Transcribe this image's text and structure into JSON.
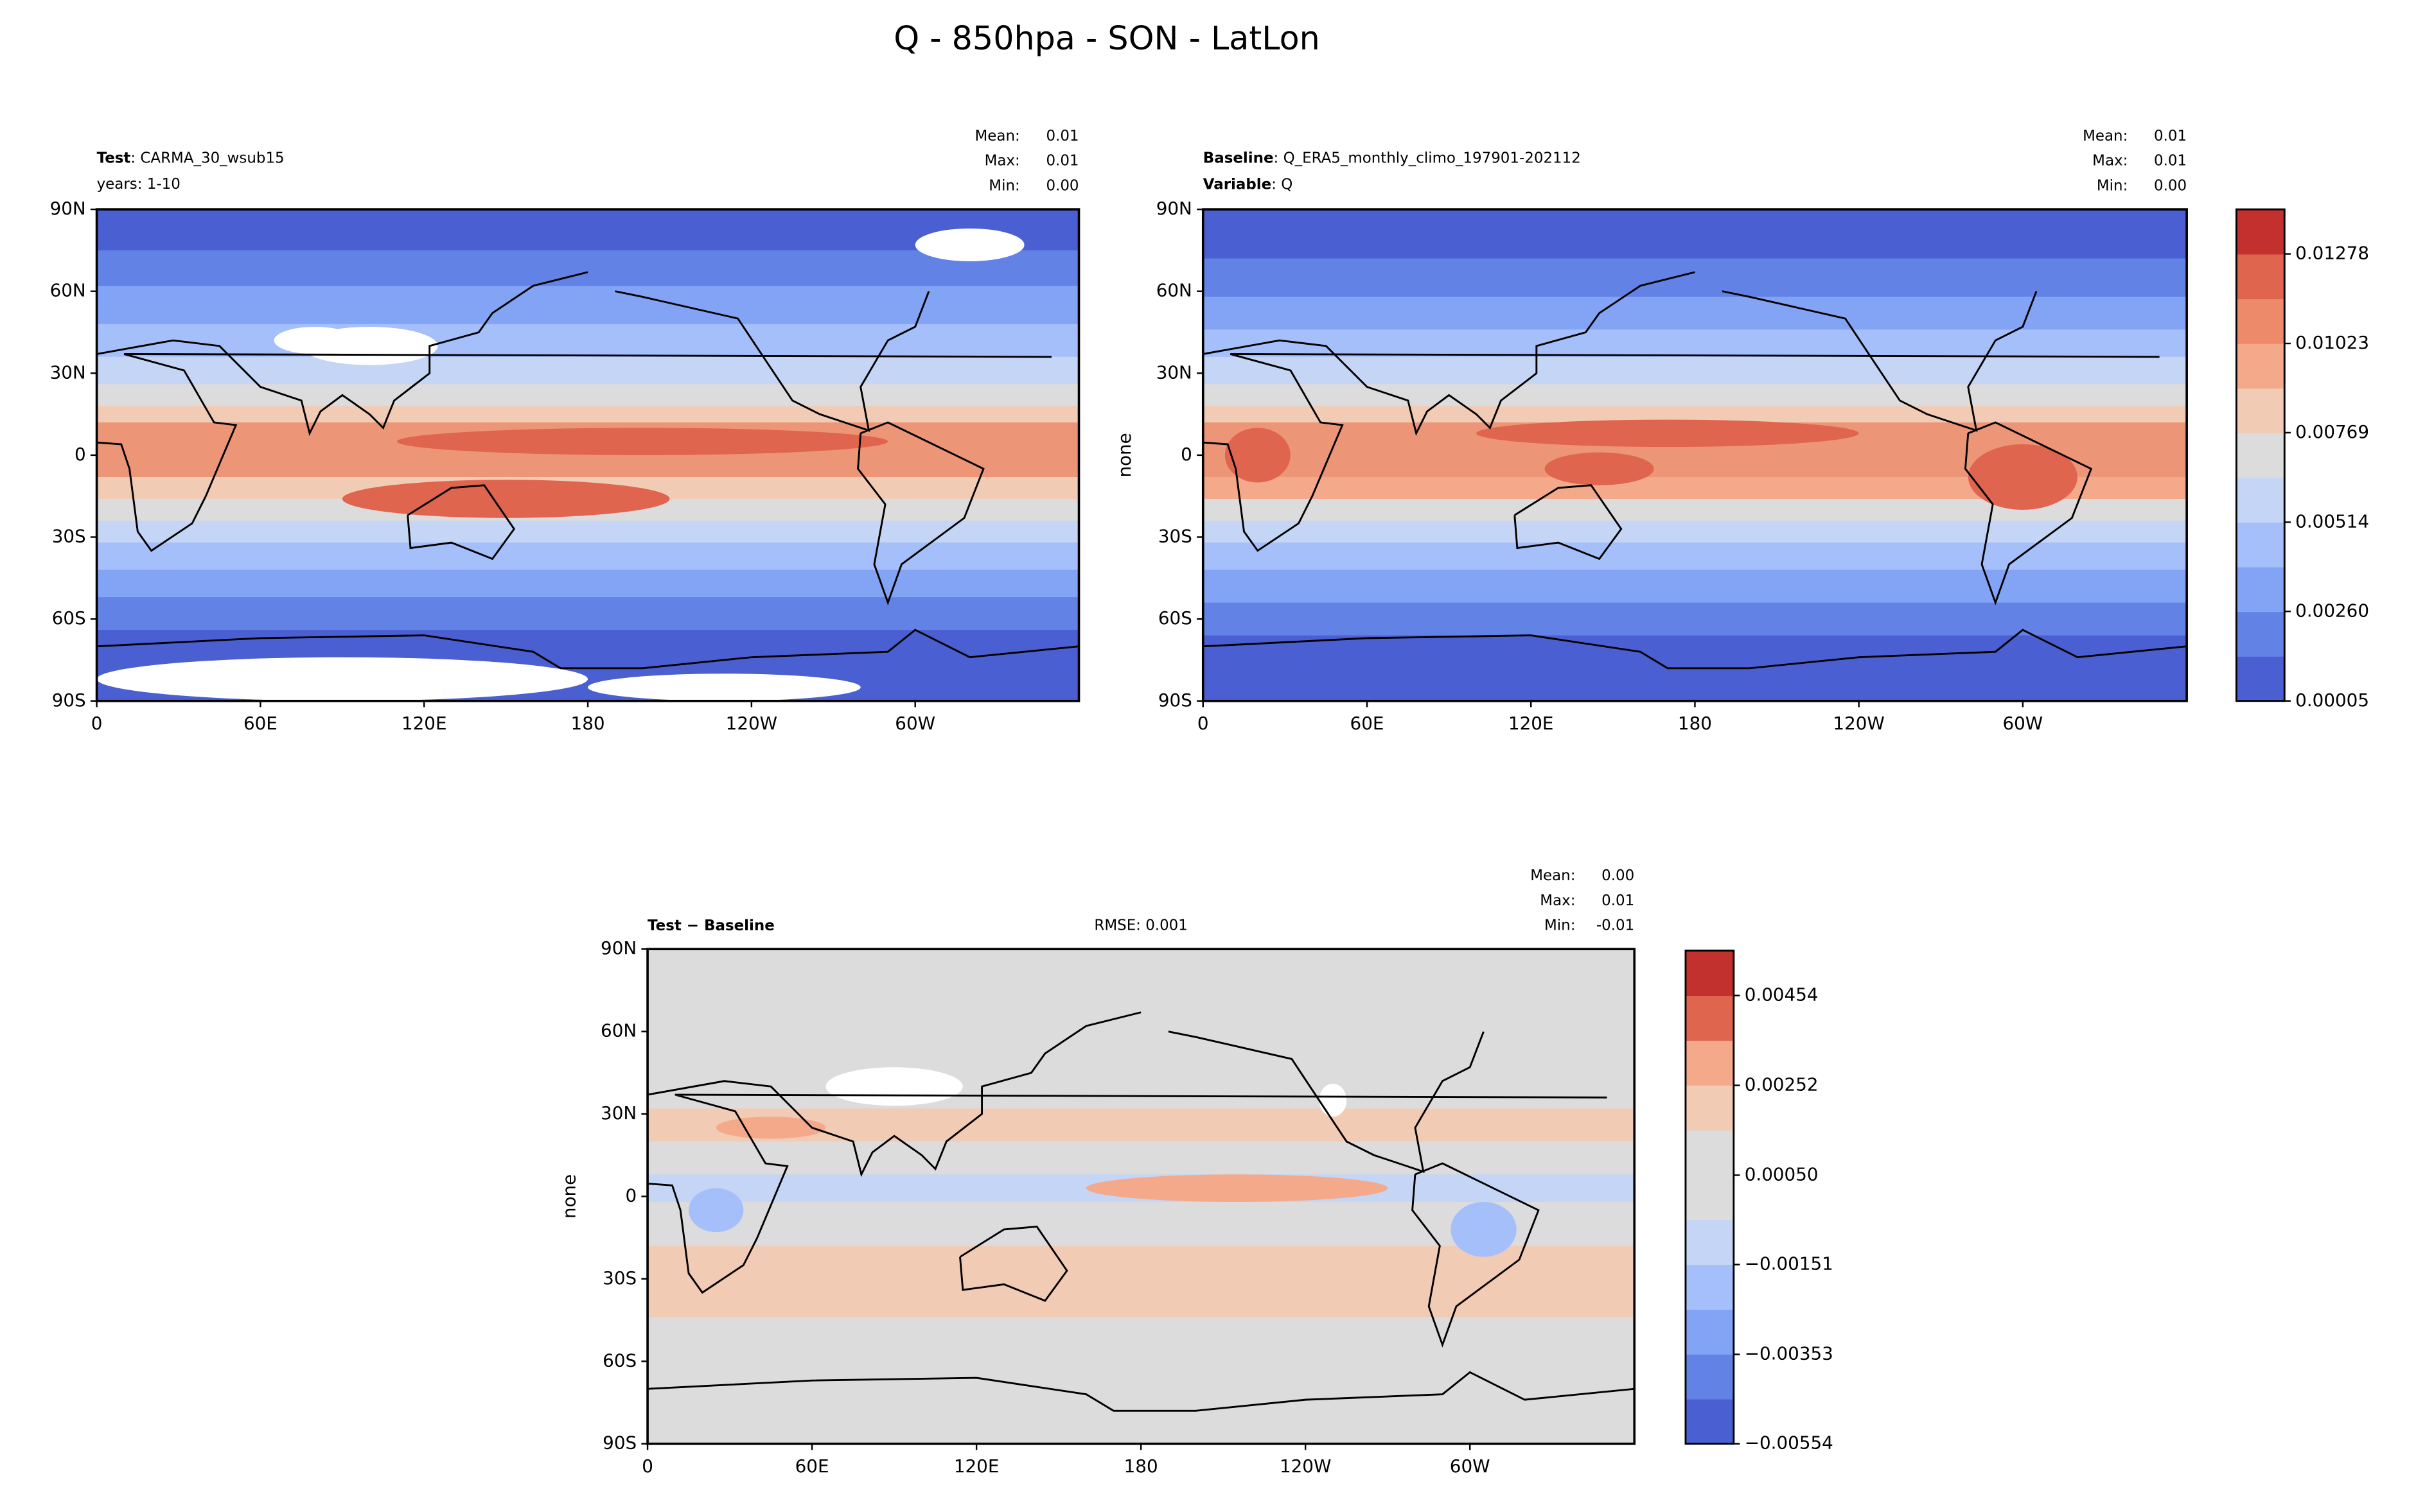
{
  "suptitle": "Q - 850hpa - SON - LatLon",
  "chart_data": [
    {
      "type": "contour-map",
      "label_bold": "Test",
      "label_rest": ": CARMA_30_wsub15",
      "label_line2": "years: 1-10",
      "stats": {
        "names": [
          "Mean:",
          "Max:",
          "Min:"
        ],
        "values": [
          0.01,
          0.01,
          0
        ],
        "value_labels": [
          "0.01",
          "0.01",
          "0.00"
        ]
      },
      "xlim": [
        0,
        360
      ],
      "xticks": [
        0,
        {
          "value": 60,
          "label": "60E"
        },
        {
          "value": 120,
          "label": "120E"
        },
        180,
        {
          "value": 240,
          "label": "120W"
        },
        {
          "value": 300,
          "label": "60W"
        }
      ],
      "ylim": [
        -90,
        90
      ],
      "yticks": [
        {
          "value": -90,
          "label": "90S"
        },
        {
          "value": -60,
          "label": "60S"
        },
        {
          "value": -30,
          "label": "30S"
        },
        0,
        {
          "value": 30,
          "label": "30N"
        },
        {
          "value": 60,
          "label": "60N"
        },
        {
          "value": 90,
          "label": "90N"
        }
      ]
    },
    {
      "type": "contour-map",
      "label_bold": "Baseline",
      "label_rest": ": Q_ERA5_monthly_climo_197901-202112",
      "label2_bold": "Variable",
      "label2_rest": ": Q",
      "ylabel": "none",
      "stats": {
        "names": [
          "Mean:",
          "Max:",
          "Min:"
        ],
        "values": [
          0.01,
          0.01,
          0
        ],
        "value_labels": [
          "0.01",
          "0.01",
          "0.00"
        ]
      },
      "xlim": [
        0,
        360
      ],
      "xticks": [
        0,
        {
          "value": 60,
          "label": "60E"
        },
        {
          "value": 120,
          "label": "120E"
        },
        180,
        {
          "value": 240,
          "label": "120W"
        },
        {
          "value": 300,
          "label": "60W"
        }
      ],
      "ylim": [
        -90,
        90
      ],
      "yticks": [
        {
          "value": -90,
          "label": "90S"
        },
        {
          "value": -60,
          "label": "60S"
        },
        {
          "value": -30,
          "label": "30S"
        },
        0,
        {
          "value": 30,
          "label": "30N"
        },
        {
          "value": 60,
          "label": "60N"
        },
        {
          "value": 90,
          "label": "90N"
        }
      ],
      "colorbar": {
        "clim": [
          5e-05,
          0.01405
        ],
        "colors": [
          "#4a5fd1",
          "#6282e6",
          "#83a3f5",
          "#a5bffb",
          "#c4d5f5",
          "#dcdcdc",
          "#f2cbb5",
          "#f3a98a",
          "#ec8a6a",
          "#e0654f",
          "#c3312f"
        ],
        "ticks": [
          5e-05,
          {
            "value": 0.0026,
            "label": "0.00260"
          },
          0.00514,
          0.00769,
          0.01023,
          0.01278
        ]
      }
    },
    {
      "type": "contour-map",
      "label_bold": "Test − Baseline",
      "center_label": "RMSE: 0.001",
      "ylabel": "none",
      "stats": {
        "names": [
          "Mean:",
          "Max:",
          "Min:"
        ],
        "values": [
          0,
          0.01,
          -0.01
        ],
        "value_labels": [
          "0.00",
          "0.01",
          "-0.01"
        ]
      },
      "xlim": [
        0,
        360
      ],
      "xticks": [
        0,
        {
          "value": 60,
          "label": "60E"
        },
        {
          "value": 120,
          "label": "120E"
        },
        180,
        {
          "value": 240,
          "label": "120W"
        },
        {
          "value": 300,
          "label": "60W"
        }
      ],
      "ylim": [
        -90,
        90
      ],
      "yticks": [
        {
          "value": -90,
          "label": "90S"
        },
        {
          "value": -60,
          "label": "60S"
        },
        {
          "value": -30,
          "label": "30S"
        },
        0,
        {
          "value": 30,
          "label": "30N"
        },
        {
          "value": 60,
          "label": "60N"
        },
        {
          "value": 90,
          "label": "90N"
        }
      ],
      "colorbar": {
        "clim": [
          -0.00554,
          0.00555
        ],
        "colors": [
          "#4a5fd1",
          "#6282e6",
          "#83a3f5",
          "#a5bffb",
          "#c4d5f5",
          "#dcdcdc",
          "#dcdcdc",
          "#f2cbb5",
          "#f3a98a",
          "#e0654f",
          "#c3312f"
        ],
        "ticks": [
          {
            "value": -0.00554,
            "label": "−0.00554"
          },
          {
            "value": -0.00353,
            "label": "−0.00353"
          },
          {
            "value": -0.00151,
            "label": "−0.00151"
          },
          {
            "value": 0.0005,
            "label": "0.00050"
          },
          {
            "value": 0.00252,
            "label": "0.00252"
          },
          {
            "value": 0.00454,
            "label": "0.00454"
          }
        ]
      }
    }
  ]
}
